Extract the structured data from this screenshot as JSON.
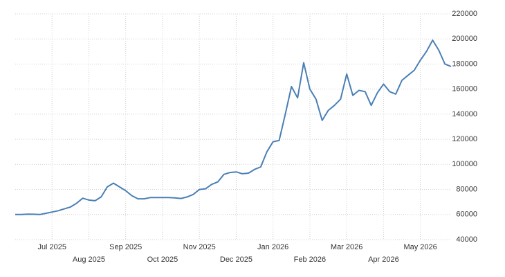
{
  "chart_data": {
    "type": "line",
    "categories": [
      null,
      null,
      null,
      null,
      null,
      null,
      "Jul 2025",
      null,
      null,
      null,
      null,
      null,
      "Aug 2025",
      null,
      null,
      null,
      null,
      null,
      "Sep 2025",
      null,
      null,
      null,
      null,
      null,
      "Oct 2025",
      null,
      null,
      null,
      null,
      null,
      "Nov 2025",
      null,
      null,
      null,
      null,
      null,
      "Dec 2025",
      null,
      null,
      null,
      null,
      null,
      "Jan 2026",
      null,
      null,
      null,
      null,
      null,
      "Feb 2026",
      null,
      null,
      null,
      null,
      null,
      "Mar 2026",
      null,
      null,
      null,
      null,
      null,
      "Apr 2026",
      null,
      null,
      null,
      null,
      null,
      "May 2026",
      null,
      null,
      null,
      null,
      null
    ],
    "series": [
      {
        "color": "#4a7fb5",
        "values": [
          60000,
          60000,
          60300,
          60200,
          60000,
          61000,
          62000,
          63000,
          64500,
          66000,
          69000,
          73000,
          71500,
          71000,
          74000,
          82000,
          85000,
          82000,
          79000,
          75000,
          72500,
          72500,
          73500,
          73500,
          73500,
          73500,
          73300,
          72800,
          74000,
          76000,
          80000,
          80500,
          84000,
          86000,
          92000,
          93500,
          94000,
          92500,
          93000,
          96000,
          98000,
          110000,
          118000,
          119000,
          140000,
          162000,
          153000,
          181000,
          160000,
          152000,
          135000,
          143000,
          147000,
          152000,
          172000,
          155000,
          159000,
          158000,
          147000,
          157000,
          164000,
          158000,
          156000,
          167000,
          171000,
          175000,
          183000,
          190000,
          199000,
          191000,
          180000,
          178000
        ]
      }
    ],
    "ylim": [
      40000,
      220000
    ],
    "yticks": [
      40000,
      60000,
      80000,
      100000,
      120000,
      140000,
      160000,
      180000,
      200000,
      220000
    ],
    "grid": true
  }
}
